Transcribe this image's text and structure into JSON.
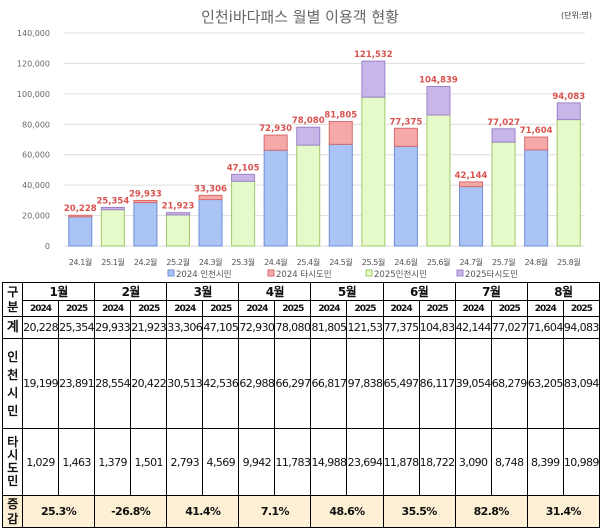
{
  "chart_data": {
    "type": "bar",
    "stacked": true,
    "title": "인천i바다패스 월별 이용객 현황",
    "unit_note": "(단위:명)",
    "categories": [
      "24.1월",
      "25.1월",
      "24.2월",
      "25.2월",
      "24.3월",
      "25.3월",
      "24.4월",
      "25.4월",
      "24.5월",
      "25.5월",
      "24.6월",
      "25.6월",
      "24.7월",
      "25.7월",
      "24.8월",
      "25.8월"
    ],
    "ylim": [
      0,
      140000
    ],
    "yticks": [
      "0",
      "20,000",
      "40,000",
      "60,000",
      "80,000",
      "100,000",
      "120,000",
      "140,000"
    ],
    "grid": true,
    "legend_position": "bottom",
    "series": [
      {
        "name": "2024 인천시민",
        "color": "#a9c4f5",
        "values": [
          19199,
          null,
          28554,
          null,
          30513,
          null,
          62988,
          null,
          66817,
          null,
          65497,
          null,
          39054,
          null,
          63205,
          null
        ]
      },
      {
        "name": "2024 타시도민",
        "color": "#f5a9a9",
        "values": [
          1029,
          null,
          1379,
          null,
          2793,
          null,
          9942,
          null,
          14988,
          null,
          11878,
          null,
          3090,
          null,
          8399,
          null
        ]
      },
      {
        "name": "2025인천시민",
        "color": "#e6f9c8",
        "values": [
          null,
          23891,
          null,
          20422,
          null,
          42536,
          null,
          66297,
          null,
          97838,
          null,
          86117,
          null,
          68279,
          null,
          83094
        ]
      },
      {
        "name": "2025타시도민",
        "color": "#c9b6e8",
        "values": [
          null,
          1463,
          null,
          1501,
          null,
          4569,
          null,
          11783,
          null,
          23694,
          null,
          18722,
          null,
          8748,
          null,
          10989
        ]
      }
    ],
    "totals": [
      "20,228",
      "25,354",
      "29,933",
      "21,923",
      "33,306",
      "47,105",
      "72,930",
      "78,080",
      "81,805",
      "121,532",
      "77,375",
      "104,839",
      "42,144",
      "77,027",
      "71,604",
      "94,083"
    ]
  },
  "table": {
    "corner": "구\n분",
    "months": [
      "1월",
      "2월",
      "3월",
      "4월",
      "5월",
      "6월",
      "7월",
      "8월"
    ],
    "years": [
      "2024",
      "2025"
    ],
    "rows": [
      {
        "label": "계",
        "values": [
          "20,228",
          "25,354",
          "29,933",
          "21,923",
          "33,306",
          "47,105",
          "72,930",
          "78,080",
          "81,805",
          "121,532",
          "77,375",
          "104,839",
          "42,144",
          "77,027",
          "71,604",
          "94,083"
        ]
      },
      {
        "label": "인천시민",
        "values": [
          "19,199",
          "23,891",
          "28,554",
          "20,422",
          "30,513",
          "42,536",
          "62,988",
          "66,297",
          "66,817",
          "97,838",
          "65,497",
          "86,117",
          "39,054",
          "68,279",
          "63,205",
          "83,094"
        ]
      },
      {
        "label": "타시도민",
        "values": [
          "1,029",
          "1,463",
          "1,379",
          "1,501",
          "2,793",
          "4,569",
          "9,942",
          "11,783",
          "14,988",
          "23,694",
          "11,878",
          "18,722",
          "3,090",
          "8,748",
          "8,399",
          "10,989"
        ]
      }
    ],
    "increase_label": "증감",
    "increase": [
      "25.3%",
      "-26.8%",
      "41.4%",
      "7.1%",
      "48.6%",
      "35.5%",
      "82.8%",
      "31.4%"
    ]
  }
}
